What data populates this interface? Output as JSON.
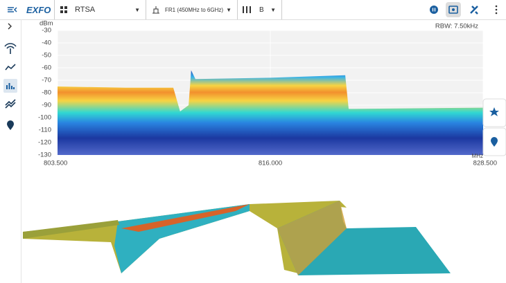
{
  "toolbar": {
    "logo": "EXFO",
    "mode": "RTSA",
    "band": "FR1 (450MHz to 6GHz)",
    "port": "B"
  },
  "chart_data": {
    "type": "area",
    "ylabel": "dBm",
    "xlabel": "MHz",
    "annotation": "RBW: 7.50kHz",
    "x": [
      803.5,
      807.5,
      810.3,
      810.7,
      811.2,
      811.35,
      811.6,
      816,
      820.4,
      820.6,
      828.5
    ],
    "values": [
      -75,
      -76,
      -76,
      -95,
      -90,
      -62,
      -69,
      -68,
      -66,
      -93,
      -92
    ],
    "xlim": [
      803.5,
      828.5
    ],
    "xticks": [
      {
        "value": 803.5,
        "label": "803.500"
      },
      {
        "value": 816,
        "label": "816.000"
      },
      {
        "value": 828.5,
        "label": "828.500"
      }
    ],
    "ylim": [
      -130,
      -30
    ],
    "yticks": [
      -30,
      -40,
      -50,
      -60,
      -70,
      -80,
      -90,
      -100,
      -110,
      -120,
      -130
    ],
    "grid": true
  }
}
